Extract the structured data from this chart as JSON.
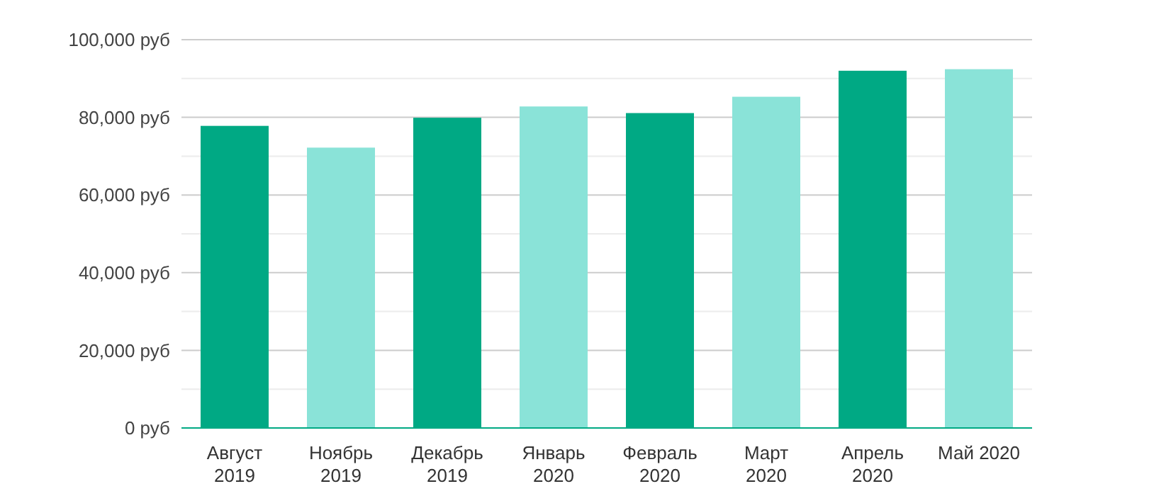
{
  "chart_data": {
    "type": "bar",
    "categories": [
      "Август 2019",
      "Ноябрь 2019",
      "Декабрь 2019",
      "Январь 2020",
      "Февраль 2020",
      "Март 2020",
      "Апрель 2020",
      "Май 2020"
    ],
    "values": [
      77800,
      72200,
      79900,
      82800,
      81100,
      85300,
      92000,
      92400
    ],
    "colors": [
      "#00a984",
      "#8ae3d8",
      "#00a984",
      "#8ae3d8",
      "#00a984",
      "#8ae3d8",
      "#00a984",
      "#8ae3d8"
    ],
    "ylim": [
      0,
      100000
    ],
    "yticks": [
      {
        "value": 0,
        "label": "0 руб"
      },
      {
        "value": 10000,
        "label": null
      },
      {
        "value": 20000,
        "label": "20,000 руб"
      },
      {
        "value": 30000,
        "label": null
      },
      {
        "value": 40000,
        "label": "40,000 руб"
      },
      {
        "value": 50000,
        "label": null
      },
      {
        "value": 60000,
        "label": "60,000 руб"
      },
      {
        "value": 70000,
        "label": null
      },
      {
        "value": 80000,
        "label": "80,000 руб"
      },
      {
        "value": 90000,
        "label": null
      },
      {
        "value": 100000,
        "label": "100,000 руб"
      }
    ],
    "grid": "y"
  }
}
